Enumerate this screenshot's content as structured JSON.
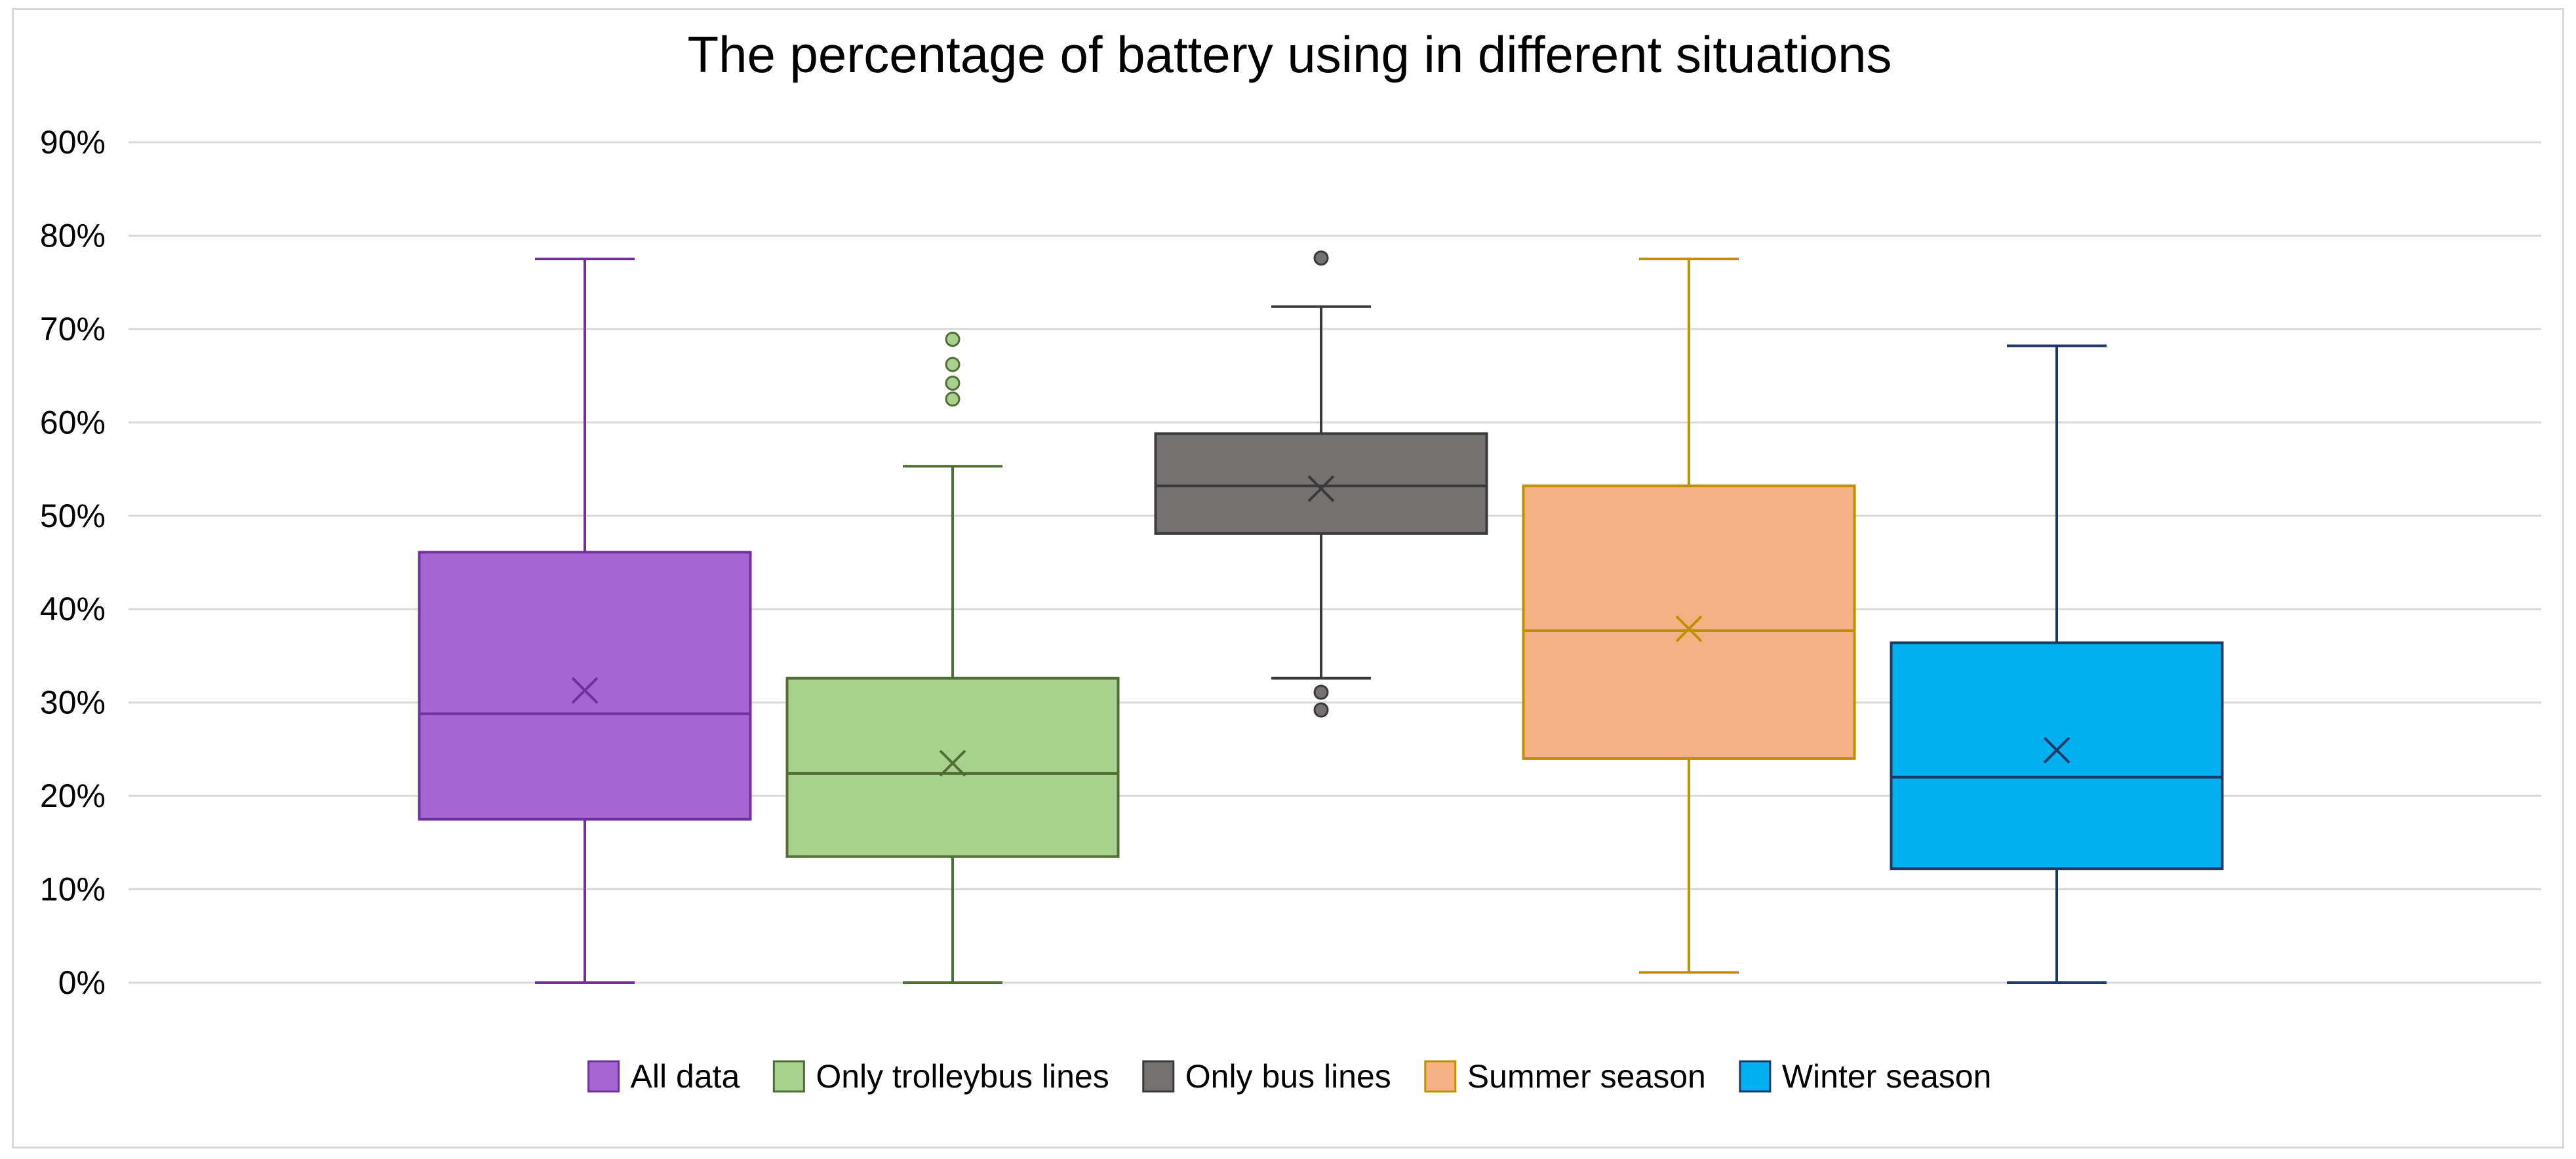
{
  "chart_data": {
    "type": "box",
    "title": "The percentage of battery using in different situations",
    "xlabel": "",
    "ylabel": "",
    "ylim": [
      0,
      90
    ],
    "yticks": [
      0,
      10,
      20,
      30,
      40,
      50,
      60,
      70,
      80,
      90
    ],
    "ytick_labels": [
      "0%",
      "10%",
      "20%",
      "30%",
      "40%",
      "50%",
      "60%",
      "70%",
      "80%",
      "90%"
    ],
    "grid": true,
    "legend_position": "bottom",
    "series": [
      {
        "name": "All data",
        "fill": "#a566d4",
        "stroke": "#7030a0",
        "min": 0,
        "q1": 17.5,
        "median": 28.8,
        "q3": 46.1,
        "max": 77.5,
        "mean": 31.3,
        "outliers": []
      },
      {
        "name": "Only trolleybus lines",
        "fill": "#a9d18e",
        "stroke": "#4f6d35",
        "min": 0,
        "q1": 13.5,
        "median": 22.4,
        "q3": 32.6,
        "max": 55.3,
        "mean": 23.5,
        "outliers": [
          62.5,
          64.2,
          66.2,
          68.9
        ]
      },
      {
        "name": "Only bus lines",
        "fill": "#767171",
        "stroke": "#3a3a3a",
        "min": 32.6,
        "q1": 48.1,
        "median": 53.2,
        "q3": 58.8,
        "max": 72.4,
        "mean": 52.9,
        "outliers": [
          29.2,
          31.1,
          77.6
        ]
      },
      {
        "name": "Summer season",
        "fill": "#f4b183",
        "stroke": "#bf9000",
        "min": 1.1,
        "q1": 24.0,
        "median": 37.7,
        "q3": 53.2,
        "max": 77.5,
        "mean": 37.9,
        "outliers": []
      },
      {
        "name": "Winter season",
        "fill": "#00b0f0",
        "stroke": "#1f3864",
        "min": 0,
        "q1": 12.2,
        "median": 22.0,
        "q3": 36.4,
        "max": 68.2,
        "mean": 24.9,
        "outliers": []
      }
    ]
  }
}
